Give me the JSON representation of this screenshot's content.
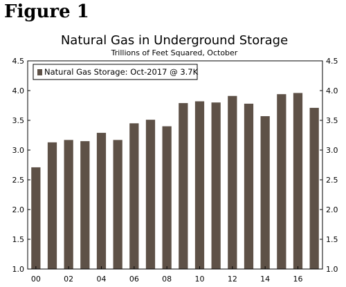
{
  "figure_label": "Figure 1",
  "chart_data": {
    "type": "bar",
    "title": "Natural Gas in Underground Storage",
    "subtitle": "Trillions of Feet Squared, October",
    "legend": "Natural Gas Storage: Oct-2017 @ 3.7K",
    "legend_position": "top-left",
    "bar_color": "#5e5147",
    "ylim": [
      1.0,
      4.5
    ],
    "y_ticks": [
      "4.5",
      "4.0",
      "3.5",
      "3.0",
      "2.5",
      "2.0",
      "1.5",
      "1.0"
    ],
    "x_tick_labels": [
      "00",
      "02",
      "04",
      "06",
      "08",
      "10",
      "12",
      "14",
      "16"
    ],
    "categories": [
      "2000",
      "2001",
      "2002",
      "2003",
      "2004",
      "2005",
      "2006",
      "2007",
      "2008",
      "2009",
      "2010",
      "2011",
      "2012",
      "2013",
      "2014",
      "2015",
      "2016",
      "2017"
    ],
    "values": [
      2.71,
      3.13,
      3.17,
      3.15,
      3.29,
      3.17,
      3.45,
      3.51,
      3.4,
      3.79,
      3.82,
      3.8,
      3.91,
      3.78,
      3.57,
      3.94,
      3.96,
      3.71
    ],
    "grid": false
  }
}
